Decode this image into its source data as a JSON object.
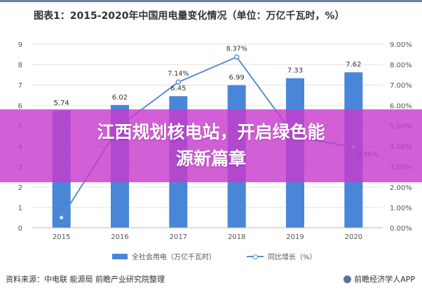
{
  "header": {
    "title": "图表1：2015-2020年中国用电量变化情况（单位：万亿千瓦时，%）"
  },
  "banner": {
    "text": "江西规划核电站，开启绿色能源新篇章"
  },
  "footer": {
    "source": "资料来源：中电联 能源局 前瞻产业研究院整理",
    "brand": "前瞻经济学人APP"
  },
  "colors": {
    "bar": "#4a86d8",
    "line": "#5a8fd0",
    "overlay": "#c83ccd"
  },
  "chart_data": {
    "type": "bar",
    "categories": [
      "2015",
      "2016",
      "2017",
      "2018",
      "2019",
      "2020"
    ],
    "series": [
      {
        "name": "全社会用电（万亿千瓦时）",
        "type": "bar",
        "axis": "left",
        "values": [
          5.74,
          6.02,
          6.45,
          6.99,
          7.33,
          7.62
        ],
        "labels": [
          "5.74",
          "6.02",
          "6.45",
          "6.99",
          "7.33",
          "7.62"
        ]
      },
      {
        "name": "同比增长（%）",
        "type": "line",
        "axis": "right",
        "values": [
          0.5,
          5.0,
          7.14,
          8.37,
          4.46,
          3.96
        ],
        "labels": [
          "",
          "",
          "7.14%",
          "8.37%",
          "",
          "3.96%"
        ]
      }
    ],
    "y_left": {
      "min": 0,
      "max": 9,
      "ticks": [
        "0",
        "1",
        "2",
        "3",
        "4",
        "5",
        "6",
        "7",
        "8",
        "9"
      ]
    },
    "y_right": {
      "min": 0,
      "max": 9,
      "ticks": [
        "0.00%",
        "1.00%",
        "2.00%",
        "3.00%",
        "4.00%",
        "5.00%",
        "6.00%",
        "7.00%",
        "8.00%",
        "9.00%"
      ]
    },
    "grid": true,
    "legend": "bottom"
  }
}
